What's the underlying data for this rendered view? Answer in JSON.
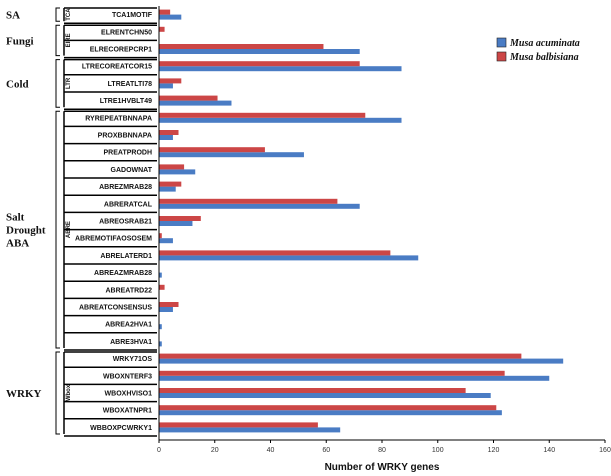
{
  "chart_data": {
    "type": "bar",
    "orientation": "horizontal",
    "title": "",
    "xlabel": "Number of WRKY genes",
    "ylabel": "",
    "xlim": [
      0,
      160
    ],
    "xticks": [
      0,
      20,
      40,
      60,
      80,
      100,
      120,
      140,
      160
    ],
    "categories": [
      "TCA1MOTIF",
      "ELRENTCHN50",
      "ELRECOREPCRP1",
      "LTRECOREATCOR15",
      "LTREATLTI78",
      "LTRE1HVBLT49",
      "RYREPEATBNNAPA",
      "PROXBBNNAPA",
      "PREATPRODH",
      "GADOWNAT",
      "ABREZMRAB28",
      "ABRERATCAL",
      "ABREOSRAB21",
      "ABREMOTIFAOSOSEM",
      "ABRELATERD1",
      "ABREAZMRAB28",
      "ABREATRD22",
      "ABREATCONSENSUS",
      "ABREA2HVA1",
      "ABRE3HVA1",
      "WRKY71OS",
      "WBOXNTERF3",
      "WBOXHVISO1",
      "WBOXATNPR1",
      "WBBOXPCWRKY1"
    ],
    "series": [
      {
        "name": "Musa acuminata",
        "color": "#4a7cc4",
        "values": [
          8,
          0,
          72,
          87,
          5,
          26,
          87,
          5,
          52,
          13,
          6,
          72,
          12,
          5,
          93,
          1,
          0,
          5,
          1,
          1,
          145,
          140,
          119,
          123,
          65
        ]
      },
      {
        "name": "Musa balbisiana",
        "color": "#cc4646",
        "values": [
          4,
          2,
          59,
          72,
          8,
          21,
          74,
          7,
          38,
          9,
          8,
          64,
          15,
          1,
          83,
          0,
          2,
          7,
          0,
          0,
          130,
          124,
          110,
          121,
          57
        ]
      }
    ],
    "groups": [
      {
        "label": "SA",
        "sublabel": "TCA",
        "lines": [
          "SA"
        ]
      },
      {
        "label": "Fungi",
        "sublabel": "EIRE",
        "lines": [
          "Fungi"
        ]
      },
      {
        "label": "Cold",
        "sublabel": "LTR",
        "lines": [
          "Cold"
        ]
      },
      {
        "label": "Salt Drought ABA",
        "sublabel": "ABRE",
        "lines": [
          "Salt",
          "Drought",
          "ABA"
        ]
      },
      {
        "label": "WRKY",
        "sublabel": "Wbox",
        "lines": [
          "WRKY"
        ]
      }
    ],
    "group_members": [
      [
        0,
        0
      ],
      [
        1,
        2
      ],
      [
        3,
        5
      ],
      [
        6,
        19
      ],
      [
        20,
        24
      ]
    ],
    "legend": {
      "position": "top-right",
      "entries": [
        "Musa acuminata",
        "Musa balbisiana"
      ]
    },
    "grid": false
  }
}
